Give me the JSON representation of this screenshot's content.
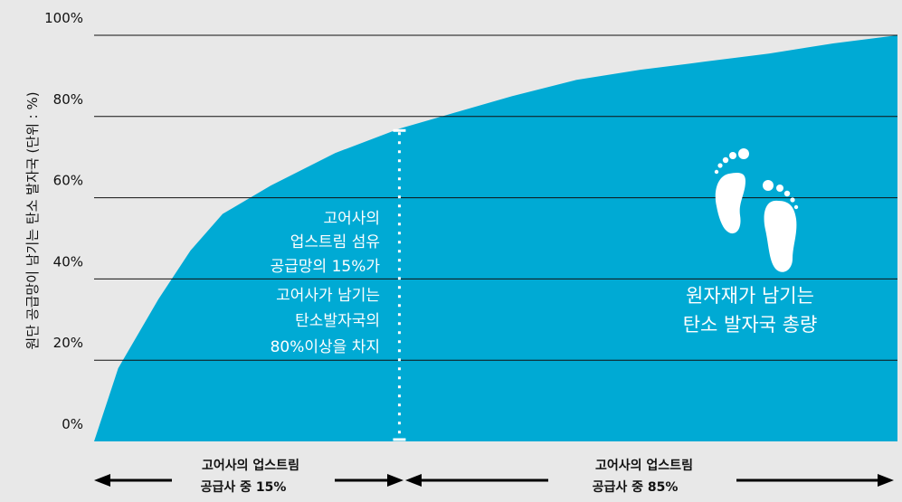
{
  "chart_data": {
    "type": "area",
    "ylabel": "원단 공급망이 남기는 탄소 발자국 (단위 : %)",
    "yticks": [
      "0%",
      "20%",
      "40%",
      "60%",
      "80%",
      "100%"
    ],
    "ylim": [
      0,
      100
    ],
    "xlim": [
      0,
      100
    ],
    "grid": true,
    "series": [
      {
        "x": [
          0,
          3,
          8,
          12,
          16,
          22,
          30,
          38,
          45,
          52,
          60,
          68,
          76,
          84,
          92,
          100
        ],
        "values": [
          0,
          18,
          35,
          47,
          56,
          63,
          71,
          77,
          81,
          85,
          89,
          91.5,
          93.5,
          95.5,
          98,
          100
        ]
      }
    ],
    "divider_x": 38,
    "annotations": {
      "left_block": [
        "고어사의",
        "업스트림 섬유",
        "공급망의 15%가",
        "고어사가 남기는",
        "탄소발자국의",
        "80%이상을 차지"
      ],
      "right_block": [
        "원자재가 남기는",
        "탄소 발자국 총량"
      ]
    },
    "bottom_labels": {
      "left": [
        "고어사의 업스트림",
        "공급사 중  15%"
      ],
      "right": [
        "고어사의 업스트림",
        "공급사 중  85%"
      ]
    },
    "colors": {
      "area": "#00aad4",
      "background": "#e8e8e8",
      "grid": "#111111",
      "divider": "#ffffff"
    },
    "icon": "footprints-icon"
  }
}
